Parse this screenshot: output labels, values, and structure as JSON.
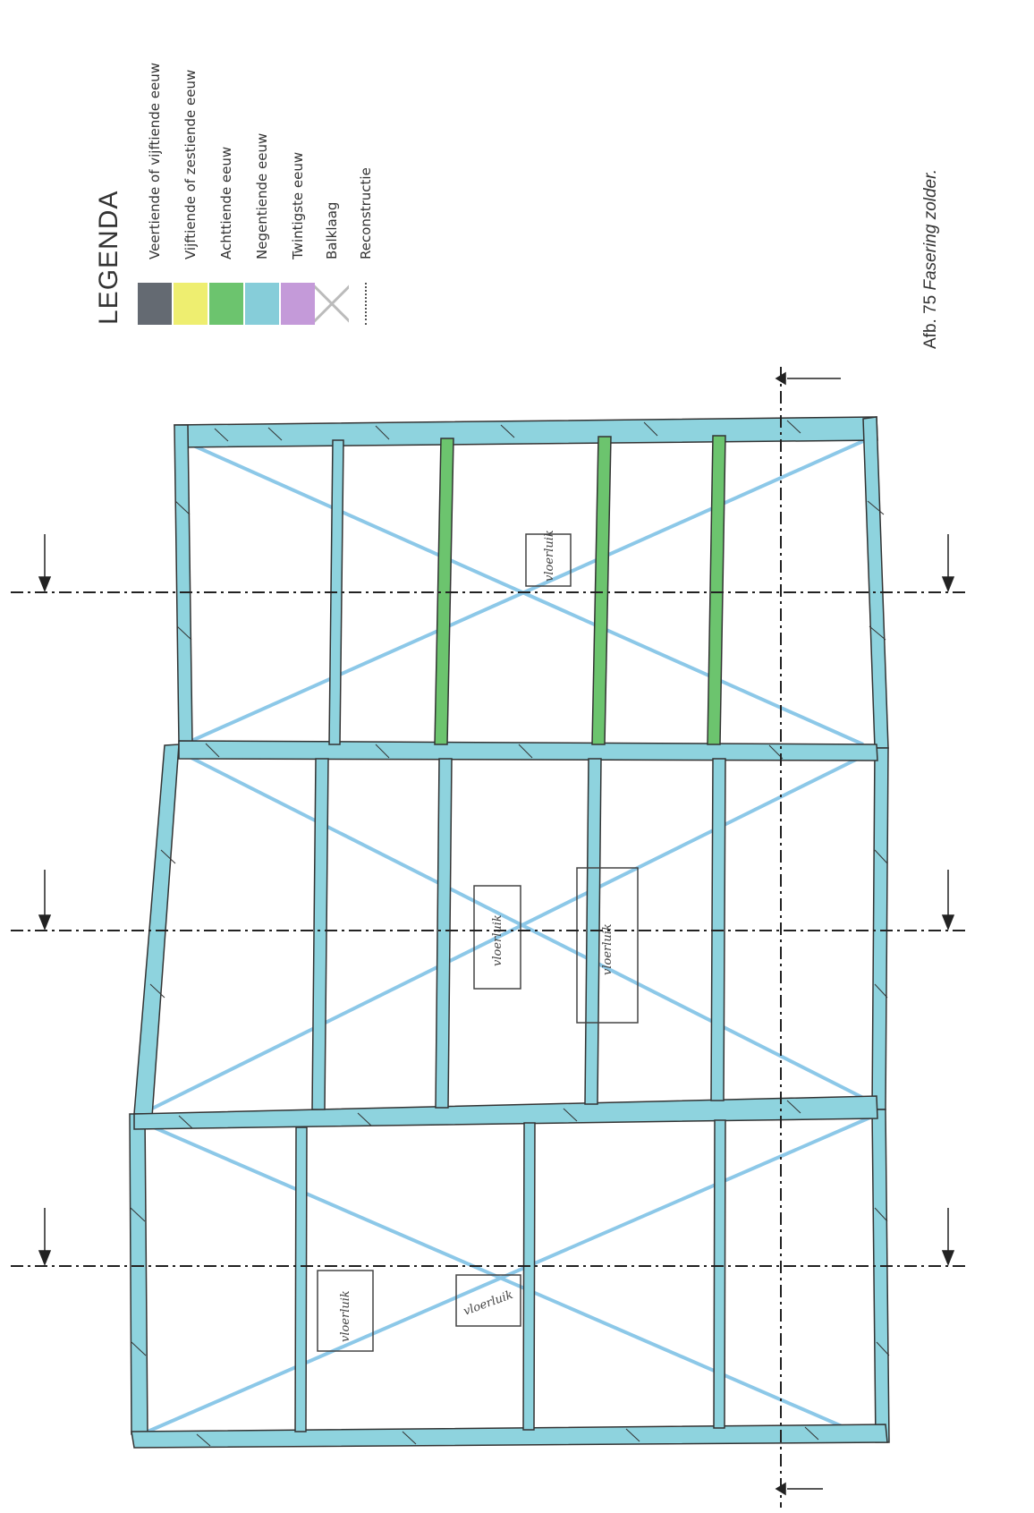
{
  "legend": {
    "title": "LEGENDA",
    "items": [
      {
        "label": "Veertiende of vijftiende eeuw",
        "color": "#646a72",
        "type": "swatch"
      },
      {
        "label": "Vijftiende of zestiende eeuw",
        "color": "#eeee70",
        "type": "swatch"
      },
      {
        "label": "Achttiende eeuw",
        "color": "#6cc46e",
        "type": "swatch"
      },
      {
        "label": "Negentiende eeuw",
        "color": "#86cdd9",
        "type": "swatch"
      },
      {
        "label": "Twintigste eeuw",
        "color": "#c49ad9",
        "type": "swatch"
      },
      {
        "label": "Balklaag",
        "color": "#cccccc",
        "type": "cross"
      },
      {
        "label": "Reconstructie",
        "color": "#555555",
        "type": "dotted"
      }
    ]
  },
  "caption": {
    "number": "Afb. 75",
    "text": "Fasering zolder."
  },
  "colors": {
    "nineteenth": "#8ed3de",
    "eighteenth": "#6cc46e",
    "line": "#333333",
    "diagonal": "#8cc8e8"
  },
  "handwritten_labels": [
    "vloerluik",
    "vloerluik",
    "vloerluik",
    "vloerluik",
    "vloerluik"
  ]
}
